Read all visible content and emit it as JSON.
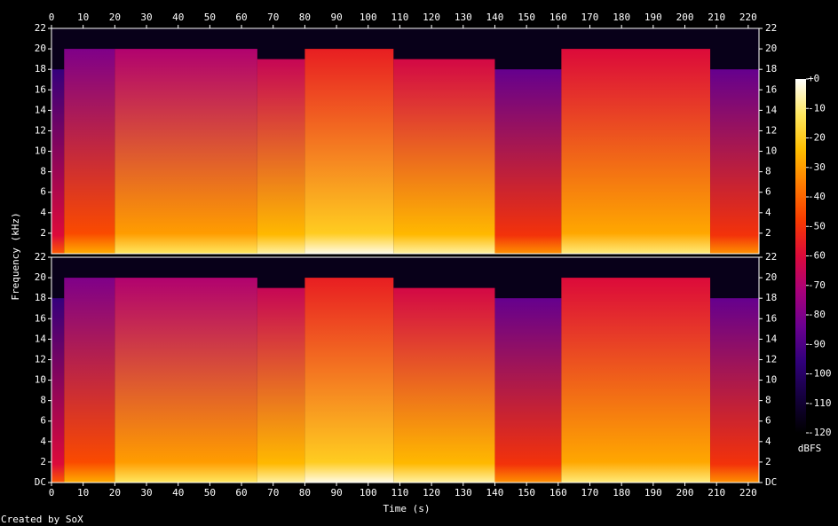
{
  "chart_data": {
    "type": "spectrogram",
    "x_label": "Time (s)",
    "y_label": "Frequency (kHz)",
    "footer": "Created by SoX",
    "colorbar_label": "dBFS",
    "xlim": [
      0,
      223.4
    ],
    "xticks": [
      0,
      10,
      20,
      30,
      40,
      50,
      60,
      70,
      80,
      90,
      100,
      110,
      120,
      130,
      140,
      150,
      160,
      170,
      180,
      190,
      200,
      210,
      220
    ],
    "ylim": [
      0,
      22
    ],
    "channel_yticks": [
      [
        2,
        4,
        6,
        8,
        10,
        12,
        14,
        16,
        18,
        20,
        22
      ],
      [
        {
          "value": 0,
          "label": "DC"
        },
        2,
        4,
        6,
        8,
        10,
        12,
        14,
        16,
        18,
        20,
        22
      ]
    ],
    "clim": [
      -120,
      0
    ],
    "cticks": [
      {
        "value": 0,
        "label": "+0"
      },
      -10,
      -20,
      -30,
      -40,
      -50,
      -60,
      -70,
      -80,
      -90,
      -100,
      -110,
      -120
    ],
    "colormap": [
      "#000000",
      "#14003c",
      "#30007a",
      "#6a0090",
      "#a8007a",
      "#dc0a3a",
      "#f83a00",
      "#ff7a00",
      "#ffbe00",
      "#ffe860",
      "#ffffff"
    ],
    "segments": [
      {
        "start": 0,
        "end": 4,
        "low_db": -60,
        "high_db": -95,
        "cutoff_khz": 18
      },
      {
        "start": 4,
        "end": 20,
        "low_db": -45,
        "high_db": -80,
        "cutoff_khz": 20
      },
      {
        "start": 20,
        "end": 65,
        "low_db": -30,
        "high_db": -70,
        "cutoff_khz": 20
      },
      {
        "start": 65,
        "end": 80,
        "low_db": -25,
        "high_db": -65,
        "cutoff_khz": 19
      },
      {
        "start": 80,
        "end": 108,
        "low_db": -20,
        "high_db": -55,
        "cutoff_khz": 20
      },
      {
        "start": 108,
        "end": 140,
        "low_db": -25,
        "high_db": -62,
        "cutoff_khz": 19
      },
      {
        "start": 140,
        "end": 161,
        "low_db": -50,
        "high_db": -85,
        "cutoff_khz": 18
      },
      {
        "start": 161,
        "end": 208,
        "low_db": -28,
        "high_db": -60,
        "cutoff_khz": 20
      },
      {
        "start": 208,
        "end": 223.4,
        "low_db": -50,
        "high_db": -85,
        "cutoff_khz": 18
      }
    ]
  }
}
